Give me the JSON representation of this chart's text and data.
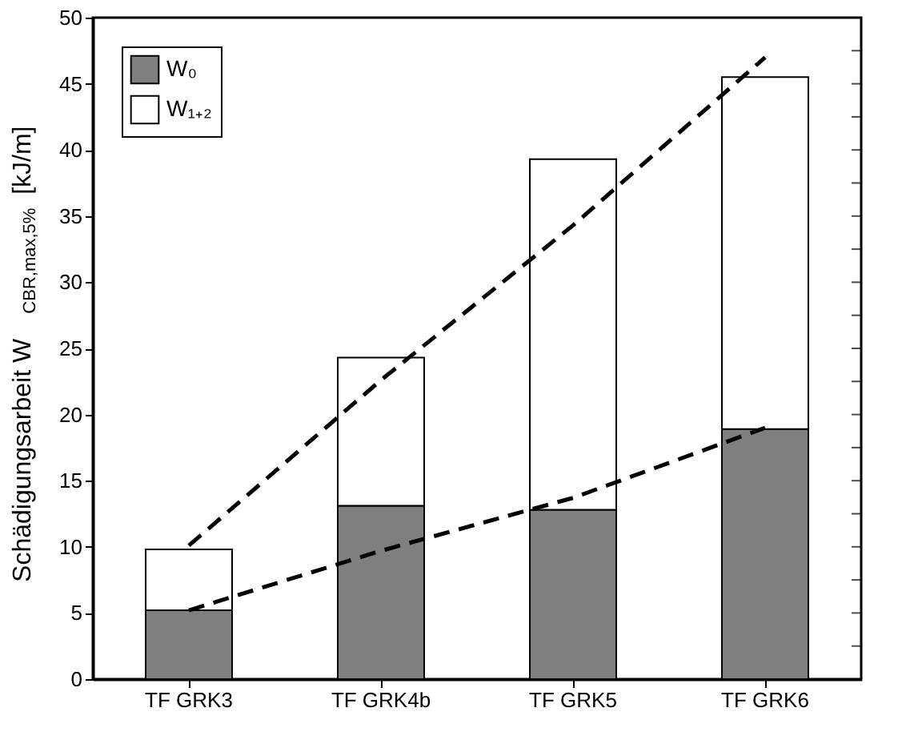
{
  "chart_data": {
    "type": "bar",
    "stacked": true,
    "ylabel": "Schädigungsarbeit W$_{CBR,max,5%}$ [kJ/m]",
    "categories": [
      "TF GRK3",
      "TF GRK4b",
      "TF GRK5",
      "TF GRK6"
    ],
    "series": [
      {
        "name": "W₀",
        "color": "#7f7f7f",
        "values": [
          5.2,
          13.1,
          12.8,
          18.9
        ]
      },
      {
        "name": "W₁₊₂",
        "color": "#ffffff",
        "values": [
          4.6,
          11.2,
          26.5,
          26.6
        ]
      },
      {
        "type": "line",
        "color": "#000000",
        "line_style": "dashed",
        "values": [
          10.1,
          22.6,
          34.3,
          47.0
        ]
      },
      {
        "type": "line",
        "color": "#000000",
        "line_style": "dashed",
        "values": [
          5.2,
          9.7,
          13.7,
          19.0
        ]
      }
    ],
    "ylim": [
      0,
      50
    ],
    "yticks": [
      0,
      {
        "value": 2.5,
        "label": null
      },
      5,
      {
        "value": 7.5,
        "label": null
      },
      10,
      {
        "value": 12.5,
        "label": null
      },
      15,
      {
        "value": 17.5,
        "label": null
      },
      20,
      {
        "value": 22.5,
        "label": null
      },
      25,
      {
        "value": 27.5,
        "label": null
      },
      30,
      {
        "value": 32.5,
        "label": null
      },
      35,
      {
        "value": 37.5,
        "label": null
      },
      40,
      {
        "value": 42.5,
        "label": null
      },
      45,
      {
        "value": 47.5,
        "label": null
      },
      50
    ],
    "grid": false,
    "legend": "top left"
  }
}
